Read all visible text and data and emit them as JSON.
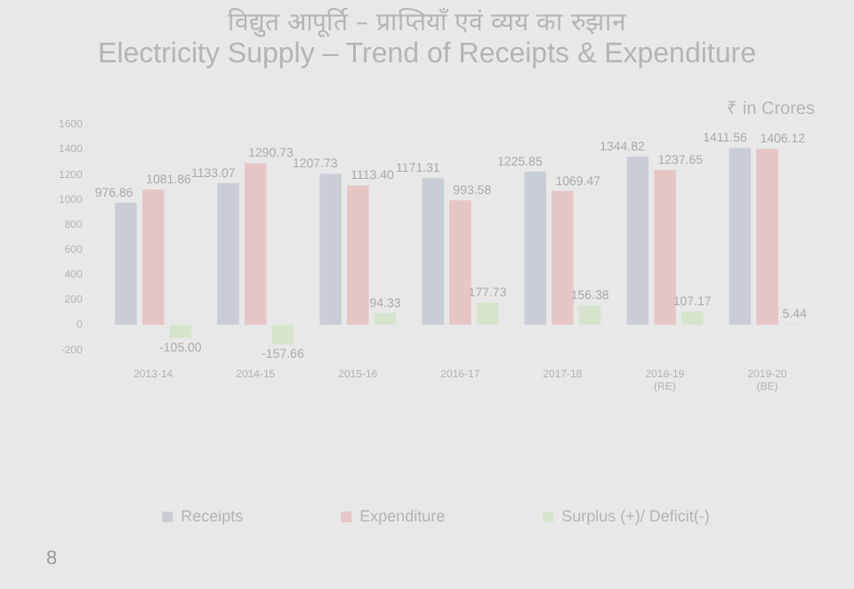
{
  "chart_data": {
    "type": "bar",
    "title": "विद्युत आपूर्ति – प्राप्तियाँ एवं व्यय का रुझान",
    "subtitle": "Electricity Supply – Trend of Receipts & Expenditure",
    "categories": [
      "2013-14",
      "2014-15",
      "2015-16",
      "2016-17",
      "2017-18",
      "2018-19 (RE)",
      "2019-20 (BE)"
    ],
    "series": [
      {
        "name": "Receipts",
        "color": "#c9ced6",
        "values": [
          976.86,
          1133.07,
          1207.73,
          1171.31,
          1225.85,
          1344.82,
          1411.56
        ],
        "value_labels": [
          "976.86",
          "1133.07",
          "1207.73",
          "1171.31",
          "1225.85",
          "1344.82",
          "1411.56"
        ]
      },
      {
        "name": "Expenditure",
        "color": "#e6c5c5",
        "values": [
          1081.86,
          1290.73,
          1113.4,
          993.58,
          1069.47,
          1237.65,
          1406.12
        ],
        "value_labels": [
          "1081.86",
          "1290.73",
          "1113.40",
          "993.58",
          "1069.47",
          "1237.65",
          "1406.12"
        ]
      },
      {
        "name": "Surplus (+)/ Deficit(-)",
        "color": "#d6e4cc",
        "values": [
          -105.0,
          -157.66,
          94.33,
          177.73,
          156.38,
          107.17,
          5.44
        ],
        "value_labels": [
          "-105.00",
          "-157.66",
          "94.33",
          "177.73",
          "156.38",
          "107.17",
          "5.44"
        ]
      }
    ],
    "ylim": [
      -200,
      1600
    ],
    "yticks": [
      -200,
      0,
      200,
      400,
      600,
      800,
      1000,
      1200,
      1400,
      1600
    ],
    "grid": false,
    "legend": "bottom",
    "annotations": [
      "₹ in Crores",
      "8"
    ]
  }
}
